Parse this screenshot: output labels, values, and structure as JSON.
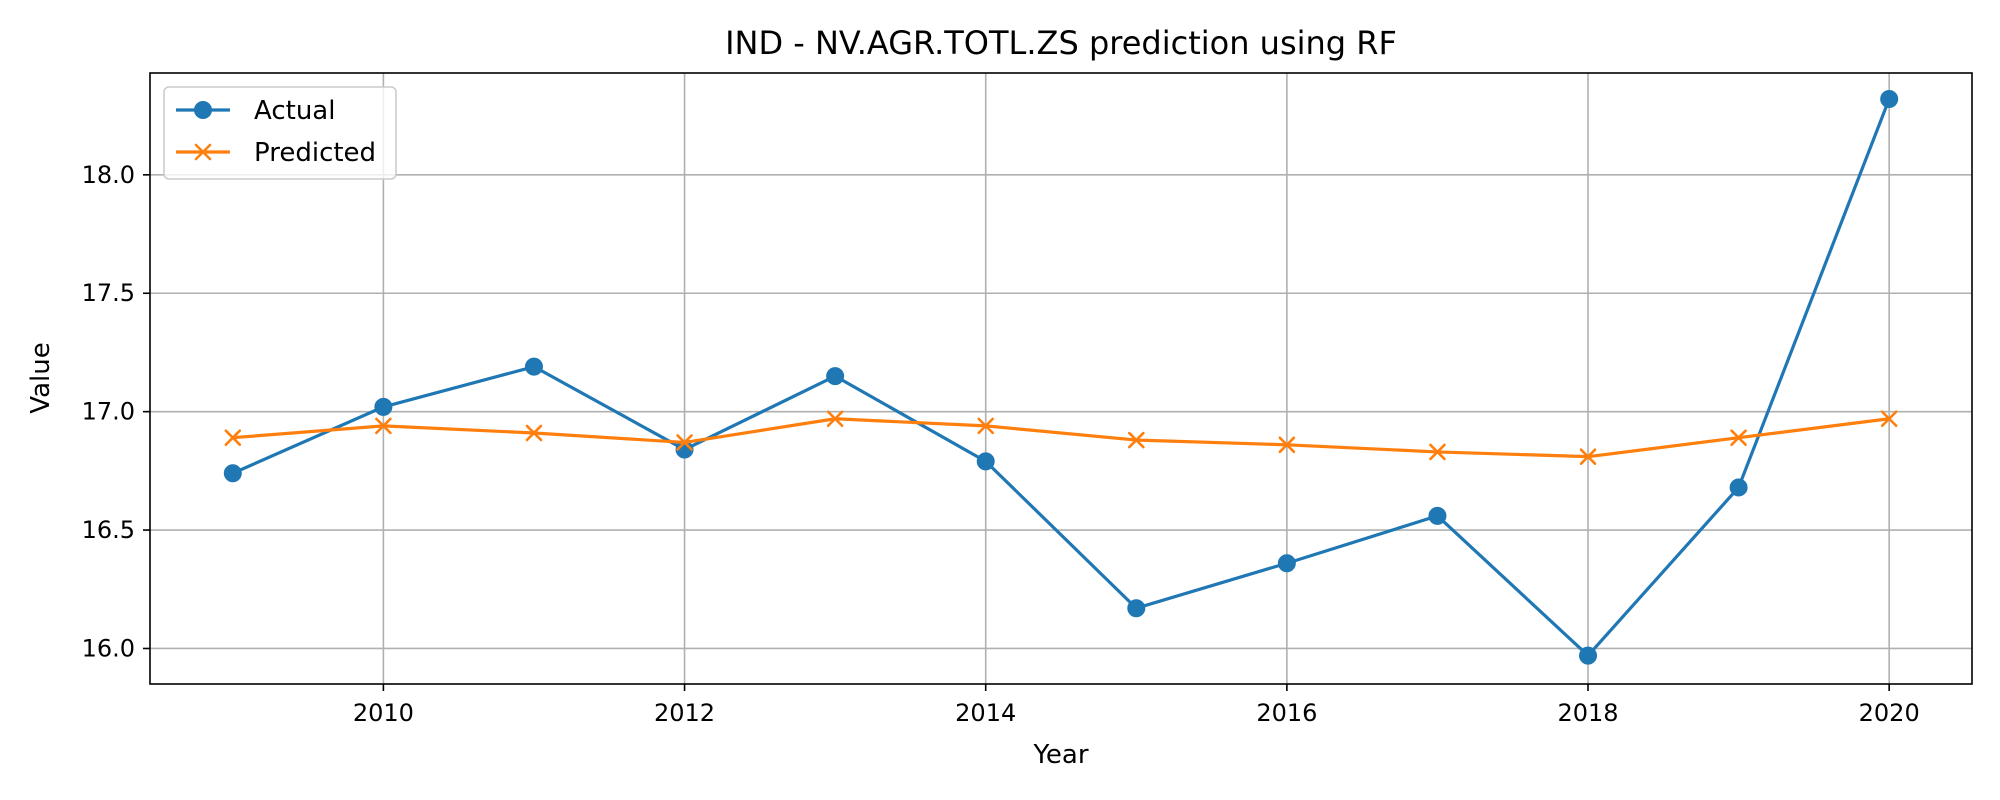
{
  "chart_data": {
    "type": "line",
    "title": "IND - NV.AGR.TOTL.ZS prediction using RF",
    "xlabel": "Year",
    "ylabel": "Value",
    "x": [
      2009,
      2010,
      2011,
      2012,
      2013,
      2014,
      2015,
      2016,
      2017,
      2018,
      2019,
      2020
    ],
    "xlim": [
      2008.45,
      2020.55
    ],
    "ylim": [
      15.85,
      18.43
    ],
    "xticks": [
      2010,
      2012,
      2014,
      2016,
      2018,
      2020
    ],
    "xtick_labels": [
      "2010",
      "2012",
      "2014",
      "2016",
      "2018",
      "2020"
    ],
    "yticks": [
      16.0,
      16.5,
      17.0,
      17.5,
      18.0
    ],
    "ytick_labels": [
      "16.0",
      "16.5",
      "17.0",
      "17.5",
      "18.0"
    ],
    "grid": true,
    "legend_position": "top-left",
    "series": [
      {
        "name": "Actual",
        "color": "#1f77b4",
        "marker": "circle",
        "values": [
          16.74,
          17.02,
          17.19,
          16.84,
          17.15,
          16.79,
          16.17,
          16.36,
          16.56,
          15.97,
          16.68,
          18.32
        ]
      },
      {
        "name": "Predicted",
        "color": "#ff7f0e",
        "marker": "x",
        "values": [
          16.89,
          16.94,
          16.91,
          16.87,
          16.97,
          16.94,
          16.88,
          16.86,
          16.83,
          16.81,
          16.89,
          16.97
        ]
      }
    ]
  }
}
